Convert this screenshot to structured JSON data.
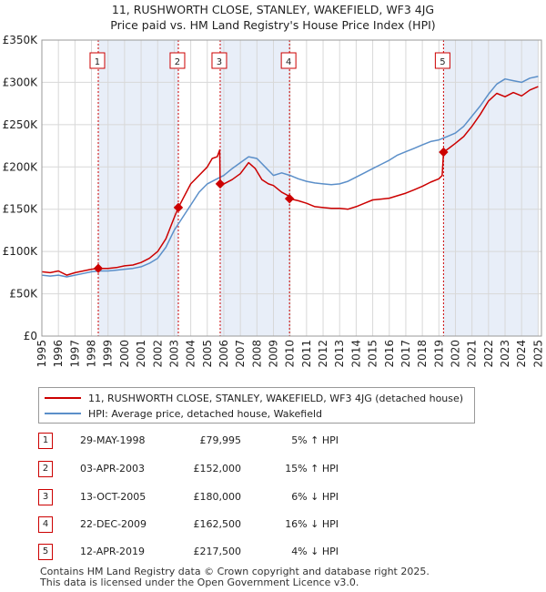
{
  "title_line1": "11, RUSHWORTH CLOSE, STANLEY, WAKEFIELD, WF3 4JG",
  "title_line2": "Price paid vs. HM Land Registry's House Price Index (HPI)",
  "colors": {
    "property": "#cc0000",
    "hpi": "#5b8fc9",
    "shade": "#e8eef8",
    "marker_border": "#cc0000"
  },
  "legend": {
    "property_label": "11, RUSHWORTH CLOSE, STANLEY, WAKEFIELD, WF3 4JG (detached house)",
    "hpi_label": "HPI: Average price, detached house, Wakefield"
  },
  "transactions": [
    {
      "num": "1",
      "date": "29-MAY-1998",
      "price": "£79,995",
      "hpi": "5% ↑ HPI"
    },
    {
      "num": "2",
      "date": "03-APR-2003",
      "price": "£152,000",
      "hpi": "15% ↑ HPI"
    },
    {
      "num": "3",
      "date": "13-OCT-2005",
      "price": "£180,000",
      "hpi": "6% ↓ HPI"
    },
    {
      "num": "4",
      "date": "22-DEC-2009",
      "price": "£162,500",
      "hpi": "16% ↓ HPI"
    },
    {
      "num": "5",
      "date": "12-APR-2019",
      "price": "£217,500",
      "hpi": "4% ↓ HPI"
    }
  ],
  "footer_line1": "Contains HM Land Registry data © Crown copyright and database right 2025.",
  "footer_line2": "This data is licensed under the Open Government Licence v3.0.",
  "chart_data": {
    "type": "line",
    "title": "11, RUSHWORTH CLOSE, STANLEY, WAKEFIELD, WF3 4JG — Price paid vs. HM Land Registry's House Price Index (HPI)",
    "xlabel": "",
    "ylabel": "",
    "xlim": [
      1995,
      2025.2
    ],
    "ylim": [
      0,
      350000
    ],
    "yticks": [
      0,
      50000,
      100000,
      150000,
      200000,
      250000,
      300000,
      350000
    ],
    "ytick_labels": [
      "£0",
      "£50K",
      "£100K",
      "£150K",
      "£200K",
      "£250K",
      "£300K",
      "£350K"
    ],
    "xticks": [
      1995,
      1996,
      1997,
      1998,
      1999,
      2000,
      2001,
      2002,
      2003,
      2004,
      2005,
      2006,
      2007,
      2008,
      2009,
      2010,
      2011,
      2012,
      2013,
      2014,
      2015,
      2016,
      2017,
      2018,
      2019,
      2020,
      2021,
      2022,
      2023,
      2024,
      2025
    ],
    "grid": true,
    "sales": [
      {
        "label": "1",
        "x": 1998.41,
        "y": 79995
      },
      {
        "label": "2",
        "x": 2003.25,
        "y": 152000
      },
      {
        "label": "3",
        "x": 2005.78,
        "y": 180000
      },
      {
        "label": "4",
        "x": 2009.97,
        "y": 162500
      },
      {
        "label": "5",
        "x": 2019.28,
        "y": 217500
      }
    ],
    "shaded_spans": [
      [
        1998.41,
        2003.25
      ],
      [
        2005.78,
        2009.97
      ],
      [
        2019.28,
        2025.0
      ]
    ],
    "series": [
      {
        "name": "11, RUSHWORTH CLOSE, STANLEY, WAKEFIELD, WF3 4JG (detached house)",
        "x": [
          1995,
          1995.5,
          1996,
          1996.5,
          1997,
          1997.5,
          1998,
          1998.41,
          1999,
          1999.5,
          2000,
          2000.5,
          2001,
          2001.5,
          2002,
          2002.5,
          2003,
          2003.25,
          2003.6,
          2004,
          2004.5,
          2005,
          2005.3,
          2005.6,
          2005.75,
          2005.78,
          2006,
          2006.5,
          2007,
          2007.5,
          2007.9,
          2008.3,
          2008.7,
          2009,
          2009.5,
          2009.9,
          2009.97,
          2010.5,
          2011,
          2011.5,
          2012,
          2012.5,
          2013,
          2013.5,
          2014,
          2014.5,
          2015,
          2015.5,
          2016,
          2016.5,
          2017,
          2017.5,
          2018,
          2018.5,
          2019,
          2019.2,
          2019.28,
          2019.6,
          2020,
          2020.5,
          2021,
          2021.5,
          2022,
          2022.5,
          2023,
          2023.5,
          2024,
          2024.5,
          2025
        ],
        "y": [
          76000,
          75000,
          77000,
          72000,
          75000,
          77000,
          79000,
          79995,
          80000,
          81000,
          83000,
          84000,
          87000,
          92000,
          100000,
          115000,
          140000,
          152000,
          165000,
          180000,
          190000,
          200000,
          210000,
          212000,
          220000,
          180000,
          180000,
          185000,
          192000,
          205000,
          198000,
          185000,
          180000,
          178000,
          170000,
          166000,
          162500,
          160000,
          157000,
          153000,
          152000,
          151000,
          151000,
          150000,
          153000,
          157000,
          161000,
          162000,
          163000,
          166000,
          169000,
          173000,
          177000,
          182000,
          186000,
          190000,
          217500,
          222000,
          228000,
          236000,
          248000,
          262000,
          278000,
          287000,
          283000,
          288000,
          284000,
          291000,
          295000
        ]
      },
      {
        "name": "HPI: Average price, detached house, Wakefield",
        "x": [
          1995,
          1995.5,
          1996,
          1996.5,
          1997,
          1997.5,
          1998,
          1998.5,
          1999,
          1999.5,
          2000,
          2000.5,
          2001,
          2001.5,
          2002,
          2002.5,
          2003,
          2003.5,
          2004,
          2004.5,
          2005,
          2005.5,
          2006,
          2006.5,
          2007,
          2007.5,
          2008,
          2008.5,
          2009,
          2009.5,
          2010,
          2010.5,
          2011,
          2011.5,
          2012,
          2012.5,
          2013,
          2013.5,
          2014,
          2014.5,
          2015,
          2015.5,
          2016,
          2016.5,
          2017,
          2017.5,
          2018,
          2018.5,
          2019,
          2019.5,
          2020,
          2020.5,
          2021,
          2021.5,
          2022,
          2022.5,
          2023,
          2023.5,
          2024,
          2024.5,
          2025
        ],
        "y": [
          72000,
          71000,
          72000,
          70000,
          72000,
          74000,
          76000,
          77000,
          77000,
          78000,
          79000,
          80000,
          82000,
          86000,
          92000,
          105000,
          125000,
          140000,
          155000,
          170000,
          180000,
          185000,
          190000,
          198000,
          205000,
          212000,
          210000,
          200000,
          190000,
          193000,
          190000,
          186000,
          183000,
          181000,
          180000,
          179000,
          180000,
          183000,
          188000,
          193000,
          198000,
          203000,
          208000,
          214000,
          218000,
          222000,
          226000,
          230000,
          232000,
          236000,
          240000,
          248000,
          260000,
          272000,
          286000,
          298000,
          304000,
          302000,
          300000,
          305000,
          307000
        ]
      }
    ]
  }
}
